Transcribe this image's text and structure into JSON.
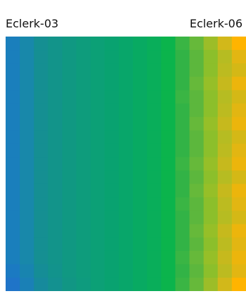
{
  "chart_data": {
    "type": "heatmap",
    "x_start_label": "Eclerk-03",
    "x_end_label": "Eclerk-06",
    "colors": {
      "low": "#1f76c5",
      "mid_blue": "#158f92",
      "teal": "#09a270",
      "green": "#0bb44c",
      "lime": "#8cbf2b",
      "high": "#ffb400"
    },
    "columns": [
      [
        "#1a7fbc",
        "#1a7fbc",
        "#1a7fbc",
        "#1a7fbc",
        "#1a7fbc",
        "#1a7fbc",
        "#1a7fbc",
        "#1a7fbc",
        "#1a7fbc",
        "#1a7fbc",
        "#1a7fbc",
        "#1a7fbc",
        "#1a7fbc",
        "#1a7fbc",
        "#1a7fbc",
        "#1a7fbc",
        "#1a7fbc",
        "#1b7ac2",
        "#1f74c8"
      ],
      [
        "#1888aa",
        "#1888aa",
        "#1888aa",
        "#1888aa",
        "#1888aa",
        "#1888aa",
        "#1888aa",
        "#1888aa",
        "#1888aa",
        "#1888aa",
        "#1888aa",
        "#1888aa",
        "#1888aa",
        "#1888aa",
        "#1888aa",
        "#1888aa",
        "#1888aa",
        "#1884af",
        "#1a80b6"
      ],
      [
        "#158f92",
        "#158f92",
        "#158f92",
        "#158f92",
        "#158f92",
        "#158f92",
        "#158f92",
        "#158f92",
        "#158f92",
        "#158f92",
        "#158f92",
        "#158f92",
        "#158f92",
        "#158f92",
        "#158f92",
        "#158f92",
        "#158f92",
        "#158d96",
        "#168a9c"
      ],
      [
        "#12948a",
        "#12948a",
        "#12948a",
        "#12948a",
        "#12948a",
        "#12948a",
        "#12948a",
        "#12948a",
        "#12948a",
        "#12948a",
        "#12948a",
        "#12948a",
        "#12948a",
        "#12948a",
        "#12948a",
        "#12948a",
        "#12948a",
        "#12938c",
        "#139190"
      ],
      [
        "#109882",
        "#109882",
        "#109882",
        "#109882",
        "#109882",
        "#109882",
        "#109882",
        "#109882",
        "#109882",
        "#109882",
        "#109882",
        "#109882",
        "#109882",
        "#109882",
        "#109882",
        "#109882",
        "#109882",
        "#109882",
        "#119684"
      ],
      [
        "#0e9c7c",
        "#0e9c7c",
        "#0e9c7c",
        "#0e9c7c",
        "#0e9c7c",
        "#0e9c7c",
        "#0e9c7c",
        "#0e9c7c",
        "#0e9c7c",
        "#0e9c7c",
        "#0e9c7c",
        "#0e9c7c",
        "#0e9c7c",
        "#0e9c7c",
        "#0e9c7c",
        "#0e9c7c",
        "#0e9c7c",
        "#0e9c7c",
        "#0e9b7e"
      ],
      [
        "#0ca076",
        "#0ca076",
        "#0ca076",
        "#0ca076",
        "#0ca076",
        "#0ca076",
        "#0ca076",
        "#0ca076",
        "#0ca076",
        "#0ca076",
        "#0ca076",
        "#0ca076",
        "#0ca076",
        "#0ca076",
        "#0ca076",
        "#0ca076",
        "#0ca076",
        "#0ca076",
        "#0ca076"
      ],
      [
        "#09a270",
        "#09a270",
        "#09a270",
        "#09a270",
        "#09a270",
        "#09a270",
        "#09a270",
        "#09a270",
        "#09a270",
        "#09a270",
        "#09a270",
        "#09a270",
        "#09a270",
        "#09a270",
        "#09a270",
        "#09a270",
        "#09a270",
        "#09a270",
        "#09a270"
      ],
      [
        "#08a66a",
        "#08a66a",
        "#08a66a",
        "#08a66a",
        "#08a66a",
        "#08a66a",
        "#08a66a",
        "#08a66a",
        "#08a66a",
        "#08a66a",
        "#08a66a",
        "#08a66a",
        "#08a66a",
        "#08a66a",
        "#08a66a",
        "#08a66a",
        "#08a66a",
        "#08a66a",
        "#08a66a"
      ],
      [
        "#08aa62",
        "#08aa62",
        "#08aa62",
        "#08aa62",
        "#08aa62",
        "#08aa62",
        "#08aa62",
        "#08aa62",
        "#08aa62",
        "#08aa62",
        "#08aa62",
        "#08aa62",
        "#08aa62",
        "#08aa62",
        "#08aa62",
        "#08aa62",
        "#08aa62",
        "#08aa62",
        "#08aa62"
      ],
      [
        "#09ae5a",
        "#09ae5a",
        "#09ae5a",
        "#09ae5a",
        "#09ae5a",
        "#09ae5a",
        "#09ae5a",
        "#09ae5a",
        "#09ae5a",
        "#09ae5a",
        "#09ae5a",
        "#09ae5a",
        "#09ae5a",
        "#09ae5a",
        "#09ae5a",
        "#09ae5a",
        "#09ae5a",
        "#09ae5a",
        "#09ae5a"
      ],
      [
        "#0bb44c",
        "#0bb44c",
        "#0bb44c",
        "#0bb44c",
        "#0bb44c",
        "#0bb44c",
        "#0bb44c",
        "#0bb44c",
        "#0bb44c",
        "#0bb44c",
        "#0bb44c",
        "#0bb44c",
        "#0bb44c",
        "#0bb44c",
        "#0bb44c",
        "#0bb44c",
        "#0bb44c",
        "#0bb44c",
        "#0bb44c"
      ],
      [
        "#3ab544",
        "#32b346",
        "#32b346",
        "#32b346",
        "#3ab544",
        "#32b346",
        "#32b346",
        "#32b346",
        "#32b346",
        "#3ab544",
        "#32b346",
        "#32b346",
        "#3ab544",
        "#32b346",
        "#32b346",
        "#32b346",
        "#3ab544",
        "#32b346",
        "#3ab544"
      ],
      [
        "#66b93a",
        "#5cb73d",
        "#5cb73d",
        "#66b93a",
        "#5cb73d",
        "#5cb73d",
        "#66b93a",
        "#5cb73d",
        "#5cb73d",
        "#66b93a",
        "#5cb73d",
        "#66b93a",
        "#5cb73d",
        "#5cb73d",
        "#66b93a",
        "#5cb73d",
        "#66b93a",
        "#5cb73d",
        "#66b93a"
      ],
      [
        "#9cbd28",
        "#8cbf2b",
        "#8cbf2b",
        "#96bf28",
        "#8cbf2b",
        "#8cbf2b",
        "#96bf28",
        "#8cbf2b",
        "#8cbf2b",
        "#96bf28",
        "#8cbf2b",
        "#96bf28",
        "#8cbf2b",
        "#8cbf2b",
        "#96bf28",
        "#8cbf2b",
        "#96bf28",
        "#8cbf2b",
        "#9cbd28"
      ],
      [
        "#d2b81a",
        "#b6bc22",
        "#bcbb20",
        "#c6b91d",
        "#b6bc22",
        "#bcbb20",
        "#c6b91d",
        "#b6bc22",
        "#bcbb20",
        "#c6b91d",
        "#b6bc22",
        "#c6b91d",
        "#bcbb20",
        "#b6bc22",
        "#c6b91d",
        "#bcbb20",
        "#c6b91d",
        "#bcbb20",
        "#d2b81a"
      ],
      [
        "#ffb400",
        "#e2b612",
        "#d4b816",
        "#ecb50c",
        "#d4b816",
        "#e2b612",
        "#ecb50c",
        "#d4b816",
        "#e2b612",
        "#ecb50c",
        "#d4b816",
        "#ecb50c",
        "#e2b612",
        "#d4b816",
        "#ecb50c",
        "#e2b612",
        "#ecb50c",
        "#e2b612",
        "#ffb400"
      ]
    ]
  }
}
